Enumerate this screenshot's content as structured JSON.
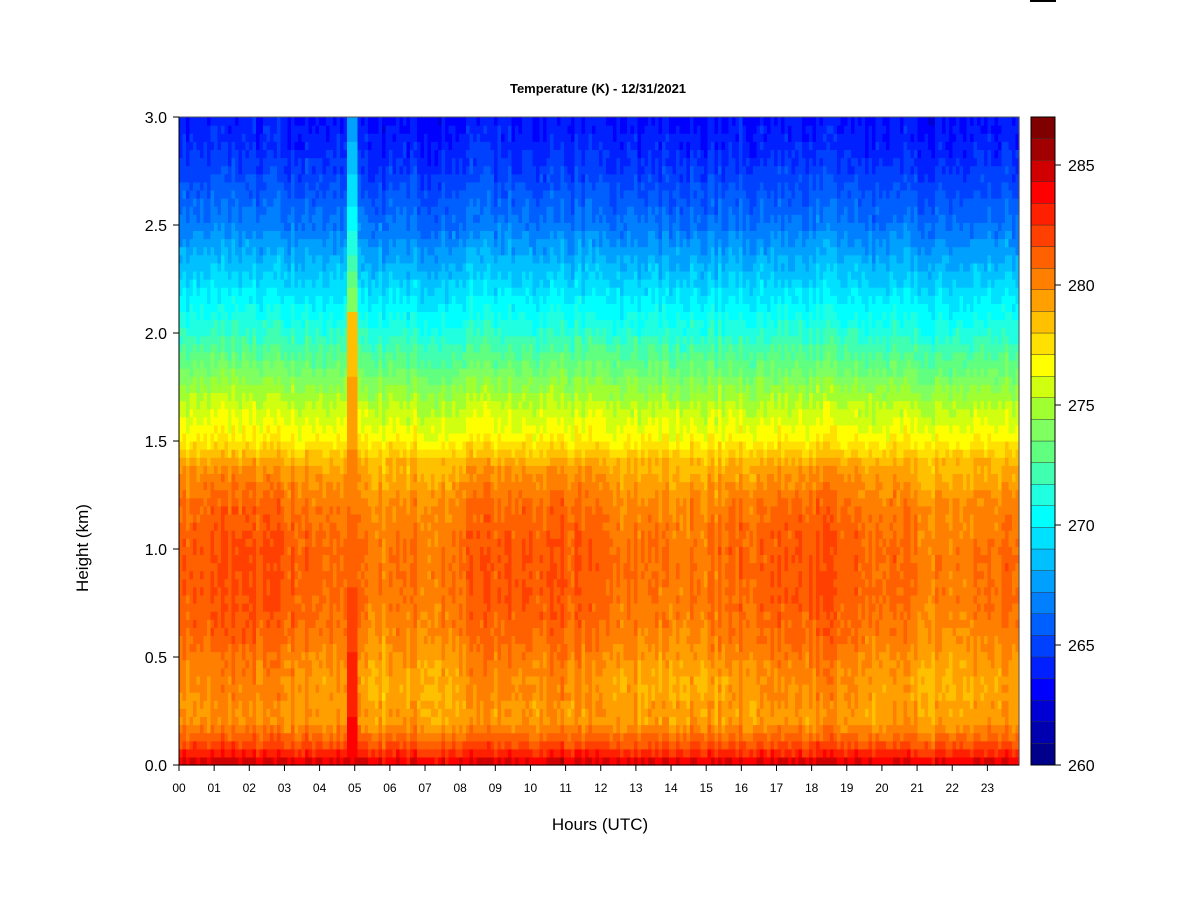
{
  "chart_data": {
    "type": "heatmap",
    "title": "Temperature (K) - 12/31/2021",
    "xlabel": "Hours (UTC)",
    "ylabel": "Height (km)",
    "x_tick_labels": [
      "00",
      "01",
      "02",
      "03",
      "04",
      "05",
      "06",
      "07",
      "08",
      "09",
      "10",
      "11",
      "12",
      "13",
      "14",
      "15",
      "16",
      "17",
      "18",
      "19",
      "20",
      "21",
      "22",
      "23"
    ],
    "x_range": [
      0,
      23.9
    ],
    "y_ticks": [
      0.0,
      0.5,
      1.0,
      1.5,
      2.0,
      2.5,
      3.0
    ],
    "y_tick_labels": [
      "0.0",
      "0.5",
      "1.0",
      "1.5",
      "2.0",
      "2.5",
      "3.0"
    ],
    "y_range": [
      0,
      3.0
    ],
    "colorbar": {
      "range": [
        260,
        287
      ],
      "ticks": [
        260,
        265,
        270,
        275,
        280,
        285
      ],
      "tick_labels": [
        "260",
        "265",
        "270",
        "275",
        "280",
        "285"
      ],
      "levels": 27,
      "colors": [
        "#00008b",
        "#0000b0",
        "#0000d4",
        "#0000ff",
        "#0020ff",
        "#0040ff",
        "#0060ff",
        "#0080ff",
        "#00a0ff",
        "#00c0ff",
        "#00e0ff",
        "#00ffff",
        "#20ffe0",
        "#40ffb0",
        "#60ff80",
        "#80ff60",
        "#a0ff30",
        "#d0ff10",
        "#ffff00",
        "#ffe000",
        "#ffc000",
        "#ffa000",
        "#ff8000",
        "#ff6000",
        "#ff4000",
        "#ff2000",
        "#ff0000",
        "#d00000",
        "#a00000",
        "#800000"
      ]
    },
    "profile": {
      "heights_km": [
        0.0,
        0.05,
        0.1,
        0.2,
        0.4,
        0.6,
        0.8,
        1.0,
        1.2,
        1.4,
        1.5,
        1.7,
        2.0,
        2.2,
        2.5,
        2.8,
        3.0
      ],
      "temperature_k": [
        285,
        283,
        281.5,
        279.5,
        279.5,
        280.5,
        281,
        281,
        280.5,
        279,
        277,
        275,
        271.5,
        269.5,
        266.5,
        264.5,
        263.5
      ]
    },
    "warm_plume": {
      "time_utc": [
        4.8,
        5.1
      ],
      "max_temperature_k": 284,
      "top_height_km": 2.1
    },
    "grid": false
  }
}
